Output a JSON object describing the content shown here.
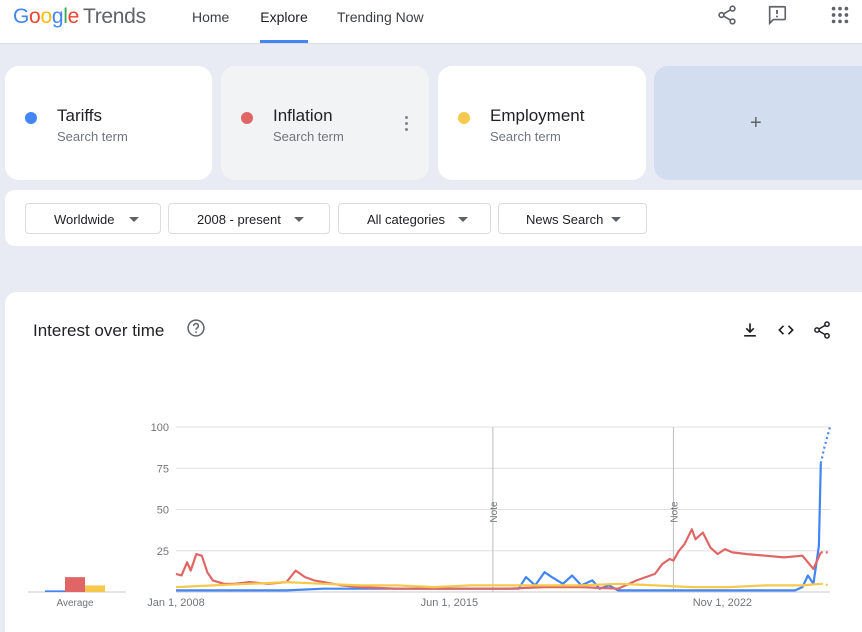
{
  "header": {
    "logo_google": "Google",
    "logo_trends": "Trends",
    "nav": [
      {
        "label": "Home",
        "active": false
      },
      {
        "label": "Explore",
        "active": true
      },
      {
        "label": "Trending Now",
        "active": false
      }
    ],
    "icons": [
      "share-icon",
      "feedback-icon",
      "apps-icon"
    ]
  },
  "terms": [
    {
      "name": "Tariffs",
      "sub": "Search term",
      "color": "#4285f4"
    },
    {
      "name": "Inflation",
      "sub": "Search term",
      "color": "#e06666"
    },
    {
      "name": "Employment",
      "sub": "Search term",
      "color": "#f6c94c"
    }
  ],
  "add_term_label": "+",
  "filters": {
    "region": "Worldwide",
    "period": "2008 - present",
    "category": "All categories",
    "property": "News Search"
  },
  "panel": {
    "title": "Interest over time",
    "icons": [
      "help-icon",
      "download-icon",
      "embed-icon",
      "share-icon"
    ]
  },
  "chart_data": {
    "type": "line",
    "y_ticks": [
      "100",
      "75",
      "50",
      "25"
    ],
    "ylim": [
      0,
      100
    ],
    "x_tick_labels": [
      "Jan 1, 2008",
      "Jun 1, 2015",
      "Nov 1, 2022"
    ],
    "x_range": [
      2008.0,
      2025.75
    ],
    "notes": [
      {
        "x": 2016.6,
        "label": "Note"
      },
      {
        "x": 2021.5,
        "label": "Note"
      }
    ],
    "average": {
      "label": "Average",
      "values": [
        1,
        9,
        4
      ]
    },
    "partial_data_from": 2025.5,
    "series": [
      {
        "name": "Tariffs",
        "color": "#4285f4",
        "x": [
          2008.0,
          2009.0,
          2010.0,
          2011.0,
          2012.0,
          2013.0,
          2014.0,
          2015.0,
          2016.0,
          2016.8,
          2017.3,
          2017.5,
          2017.75,
          2018.0,
          2018.2,
          2018.5,
          2018.75,
          2019.0,
          2019.3,
          2019.5,
          2019.75,
          2020.0,
          2021.0,
          2022.0,
          2023.0,
          2024.0,
          2024.8,
          2025.0,
          2025.15,
          2025.3,
          2025.45,
          2025.5,
          2025.6,
          2025.75
        ],
        "y": [
          1,
          1,
          1,
          1,
          2,
          2,
          2,
          2,
          2,
          2,
          2,
          9,
          4,
          12,
          9,
          5,
          10,
          4,
          7,
          2,
          4,
          1,
          1,
          1,
          1,
          1,
          1,
          3,
          10,
          5,
          28,
          78,
          88,
          100
        ]
      },
      {
        "name": "Inflation",
        "color": "#e06666",
        "x": [
          2008.0,
          2008.15,
          2008.3,
          2008.4,
          2008.55,
          2008.7,
          2008.85,
          2009.0,
          2009.3,
          2009.6,
          2010.0,
          2010.5,
          2011.0,
          2011.25,
          2011.5,
          2011.75,
          2012.0,
          2012.5,
          2013.0,
          2014.0,
          2015.0,
          2016.0,
          2017.0,
          2018.0,
          2019.0,
          2020.0,
          2020.5,
          2021.0,
          2021.2,
          2021.4,
          2021.5,
          2021.65,
          2021.8,
          2022.0,
          2022.1,
          2022.3,
          2022.5,
          2022.7,
          2022.9,
          2023.1,
          2023.5,
          2024.0,
          2024.5,
          2025.0,
          2025.3,
          2025.5,
          2025.75
        ],
        "y": [
          11,
          10,
          18,
          13,
          23,
          22,
          12,
          7,
          5,
          5,
          6,
          5,
          6,
          13,
          9,
          7,
          6,
          4,
          3,
          2,
          2,
          2,
          2,
          3,
          3,
          2,
          7,
          11,
          17,
          20,
          19,
          25,
          29,
          38,
          32,
          36,
          27,
          23,
          26,
          24,
          23,
          22,
          21,
          22,
          14,
          24,
          24
        ]
      },
      {
        "name": "Employment",
        "color": "#f6c94c",
        "x": [
          2008.0,
          2009.0,
          2010.0,
          2011.0,
          2012.0,
          2013.0,
          2014.0,
          2015.0,
          2016.0,
          2017.0,
          2018.0,
          2019.0,
          2020.0,
          2021.0,
          2022.0,
          2023.0,
          2024.0,
          2025.0,
          2025.5,
          2025.75
        ],
        "y": [
          3,
          4,
          5,
          6,
          5,
          4,
          4,
          3,
          4,
          4,
          4,
          4,
          5,
          4,
          3,
          3,
          4,
          4,
          5,
          4
        ]
      }
    ]
  }
}
